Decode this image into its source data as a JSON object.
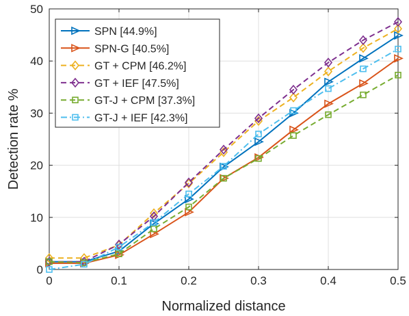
{
  "chart_data": {
    "type": "line",
    "title": "",
    "xlabel": "Normalized distance",
    "ylabel": "Detection rate %",
    "xlim": [
      0,
      0.5
    ],
    "ylim": [
      0,
      50
    ],
    "xticks": [
      0,
      0.1,
      0.2,
      0.3,
      0.4,
      0.5
    ],
    "xtick_labels": [
      "0",
      "0.1",
      "0.2",
      "0.3",
      "0.4",
      "0.5"
    ],
    "yticks": [
      0,
      10,
      20,
      30,
      40,
      50
    ],
    "ytick_labels": [
      "0",
      "10",
      "20",
      "30",
      "40",
      "50"
    ],
    "grid": true,
    "legend_position": "top-left",
    "x": [
      0,
      0.05,
      0.1,
      0.15,
      0.2,
      0.25,
      0.3,
      0.35,
      0.4,
      0.45,
      0.5
    ],
    "series": [
      {
        "name": "SPN  [44.9%]",
        "color": "#0072BD",
        "dash": "solid",
        "marker": "triangle-right",
        "values": [
          1.5,
          1.5,
          3.5,
          8.8,
          13.5,
          19.7,
          24.5,
          30.0,
          36.0,
          40.5,
          44.9
        ]
      },
      {
        "name": "SPN-G  [40.5%]",
        "color": "#D95319",
        "dash": "solid",
        "marker": "triangle-right",
        "values": [
          1.2,
          1.2,
          2.8,
          6.8,
          11.0,
          17.5,
          21.5,
          26.8,
          31.8,
          35.7,
          40.5
        ]
      },
      {
        "name": "GT + CPM  [46.2%]",
        "color": "#EDB120",
        "dash": "dashed",
        "marker": "diamond",
        "values": [
          2.2,
          2.2,
          4.7,
          10.8,
          16.5,
          22.5,
          28.5,
          33.0,
          38.0,
          42.5,
          46.2
        ]
      },
      {
        "name": "GT + IEF  [47.5%]",
        "color": "#7E2F8E",
        "dash": "dashed",
        "marker": "diamond",
        "values": [
          1.5,
          1.5,
          4.8,
          10.2,
          16.7,
          23.0,
          29.0,
          34.5,
          39.7,
          44.0,
          47.5
        ]
      },
      {
        "name": "GT-J + CPM  [37.3%]",
        "color": "#77AC30",
        "dash": "dashed",
        "marker": "square",
        "values": [
          1.5,
          1.3,
          3.0,
          7.8,
          12.0,
          17.5,
          21.3,
          25.7,
          29.7,
          33.5,
          37.3
        ]
      },
      {
        "name": "GT-J + IEF  [42.3%]",
        "color": "#4DBEEE",
        "dash": "dashdot",
        "marker": "square",
        "values": [
          0.0,
          1.0,
          4.3,
          9.0,
          14.5,
          19.8,
          26.0,
          30.5,
          34.7,
          38.5,
          42.3
        ]
      }
    ]
  }
}
